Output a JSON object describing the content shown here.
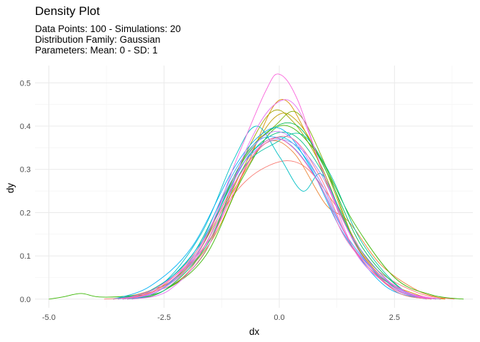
{
  "chart_data": {
    "type": "line",
    "title": "Density Plot",
    "subtitle_lines": [
      "Data Points: 100 - Simulations: 20",
      "Distribution Family: Gaussian",
      "Parameters: Mean: 0 - SD: 1"
    ],
    "xlabel": "dx",
    "ylabel": "dy",
    "xlim": [
      -5.3,
      4.2
    ],
    "ylim": [
      -0.02,
      0.54
    ],
    "x_ticks": [
      -5.0,
      -2.5,
      0.0,
      2.5
    ],
    "x_tick_labels": [
      "-5.0",
      "-2.5",
      "0.0",
      "2.5"
    ],
    "y_ticks": [
      0.0,
      0.1,
      0.2,
      0.3,
      0.4,
      0.5
    ],
    "y_tick_labels": [
      "0.0",
      "0.1",
      "0.2",
      "0.3",
      "0.4",
      "0.5"
    ],
    "grid": true,
    "legend": "none",
    "series": [
      {
        "color": "#F8766D",
        "x": [
          -3.8,
          -3.0,
          -2.0,
          -1.0,
          -0.2,
          0.5,
          1.2,
          2.0,
          3.0,
          3.8
        ],
        "y": [
          0.0,
          0.01,
          0.06,
          0.24,
          0.31,
          0.31,
          0.22,
          0.08,
          0.015,
          0.0
        ]
      },
      {
        "color": "#EA8331",
        "x": [
          -3.6,
          -2.8,
          -2.0,
          -1.0,
          -0.3,
          0.3,
          1.0,
          1.5,
          2.2,
          3.0,
          3.6
        ],
        "y": [
          0.0,
          0.02,
          0.07,
          0.25,
          0.36,
          0.34,
          0.22,
          0.18,
          0.08,
          0.02,
          0.0
        ]
      },
      {
        "color": "#D89000",
        "x": [
          -3.2,
          -2.5,
          -1.5,
          -0.7,
          0.0,
          0.6,
          1.3,
          2.1,
          3.0,
          3.6
        ],
        "y": [
          0.0,
          0.02,
          0.13,
          0.31,
          0.46,
          0.38,
          0.2,
          0.06,
          0.01,
          0.0
        ]
      },
      {
        "color": "#C09B00",
        "x": [
          -3.4,
          -2.6,
          -1.6,
          -0.8,
          -0.1,
          0.4,
          1.0,
          1.7,
          2.6,
          3.4
        ],
        "y": [
          0.0,
          0.02,
          0.12,
          0.3,
          0.42,
          0.41,
          0.3,
          0.12,
          0.02,
          0.0
        ]
      },
      {
        "color": "#A3A500",
        "x": [
          -3.5,
          -2.7,
          -1.8,
          -0.9,
          -0.2,
          0.3,
          0.9,
          1.6,
          2.5,
          3.3
        ],
        "y": [
          0.0,
          0.02,
          0.1,
          0.3,
          0.43,
          0.41,
          0.31,
          0.14,
          0.03,
          0.0
        ]
      },
      {
        "color": "#7CAE00",
        "x": [
          -3.3,
          -2.5,
          -1.6,
          -0.8,
          -0.1,
          0.4,
          1.0,
          1.7,
          2.5,
          3.3
        ],
        "y": [
          0.0,
          0.02,
          0.11,
          0.32,
          0.4,
          0.43,
          0.31,
          0.12,
          0.02,
          0.0
        ]
      },
      {
        "color": "#39B600",
        "x": [
          -5.0,
          -4.7,
          -4.3,
          -3.9,
          -3.2,
          -2.5,
          -1.6,
          -0.8,
          0.0,
          0.8,
          1.6,
          2.5,
          3.3,
          4.0
        ],
        "y": [
          0.0,
          0.005,
          0.013,
          0.005,
          0.008,
          0.02,
          0.1,
          0.28,
          0.4,
          0.34,
          0.18,
          0.05,
          0.01,
          0.0
        ]
      },
      {
        "color": "#00BB4E",
        "x": [
          -3.4,
          -2.6,
          -1.7,
          -0.9,
          -0.2,
          0.4,
          1.0,
          1.8,
          2.7,
          3.5
        ],
        "y": [
          0.0,
          0.02,
          0.12,
          0.3,
          0.39,
          0.4,
          0.3,
          0.12,
          0.02,
          0.0
        ]
      },
      {
        "color": "#00BF7D",
        "x": [
          -3.6,
          -2.8,
          -1.9,
          -1.0,
          -0.3,
          0.3,
          0.9,
          1.6,
          2.5,
          3.3
        ],
        "y": [
          0.0,
          0.02,
          0.1,
          0.28,
          0.37,
          0.38,
          0.3,
          0.14,
          0.03,
          0.0
        ]
      },
      {
        "color": "#00C1A3",
        "x": [
          -3.3,
          -2.5,
          -1.6,
          -0.8,
          -0.1,
          0.5,
          1.1,
          1.8,
          2.7,
          3.5
        ],
        "y": [
          0.0,
          0.02,
          0.12,
          0.3,
          0.36,
          0.38,
          0.29,
          0.13,
          0.02,
          0.0
        ]
      },
      {
        "color": "#00BFC4",
        "x": [
          -3.6,
          -2.6,
          -1.7,
          -1.0,
          -0.5,
          0.0,
          0.5,
          0.9,
          1.3,
          1.8,
          2.6,
          3.4
        ],
        "y": [
          0.0,
          0.03,
          0.15,
          0.32,
          0.4,
          0.33,
          0.25,
          0.29,
          0.21,
          0.1,
          0.02,
          0.0
        ]
      },
      {
        "color": "#00BAE0",
        "x": [
          -3.5,
          -2.6,
          -1.7,
          -0.8,
          -0.2,
          0.3,
          0.9,
          1.6,
          2.5,
          3.3
        ],
        "y": [
          0.0,
          0.03,
          0.13,
          0.31,
          0.37,
          0.36,
          0.27,
          0.12,
          0.03,
          0.0
        ]
      },
      {
        "color": "#00B0F6",
        "x": [
          -3.6,
          -2.8,
          -1.9,
          -1.0,
          -0.4,
          0.1,
          0.7,
          1.4,
          2.3,
          3.2
        ],
        "y": [
          0.0,
          0.03,
          0.12,
          0.3,
          0.38,
          0.39,
          0.3,
          0.15,
          0.03,
          0.0
        ]
      },
      {
        "color": "#35A2FF",
        "x": [
          -3.4,
          -2.6,
          -1.8,
          -1.0,
          -0.4,
          0.2,
          0.8,
          1.5,
          2.4,
          3.2
        ],
        "y": [
          0.0,
          0.02,
          0.11,
          0.29,
          0.37,
          0.36,
          0.28,
          0.14,
          0.03,
          0.0
        ]
      },
      {
        "color": "#9590FF",
        "x": [
          -3.5,
          -2.6,
          -1.8,
          -1.0,
          -0.3,
          0.3,
          0.9,
          1.6,
          2.5,
          3.3
        ],
        "y": [
          0.0,
          0.02,
          0.1,
          0.28,
          0.36,
          0.36,
          0.29,
          0.14,
          0.03,
          0.0
        ]
      },
      {
        "color": "#C77CFF",
        "x": [
          -3.4,
          -2.6,
          -1.7,
          -0.9,
          -0.3,
          0.3,
          0.9,
          1.6,
          2.5,
          3.3
        ],
        "y": [
          0.0,
          0.02,
          0.11,
          0.29,
          0.38,
          0.37,
          0.27,
          0.12,
          0.03,
          0.0
        ]
      },
      {
        "color": "#E76BF3",
        "x": [
          -3.2,
          -2.4,
          -1.5,
          -0.7,
          -0.1,
          0.4,
          1.0,
          1.7,
          2.6,
          3.4
        ],
        "y": [
          0.0,
          0.02,
          0.13,
          0.35,
          0.45,
          0.44,
          0.28,
          0.1,
          0.02,
          0.0
        ]
      },
      {
        "color": "#FA62DB",
        "x": [
          -3.4,
          -2.6,
          -1.7,
          -0.9,
          -0.3,
          0.0,
          0.4,
          1.0,
          1.8,
          2.7,
          3.5
        ],
        "y": [
          0.0,
          0.03,
          0.12,
          0.33,
          0.48,
          0.52,
          0.46,
          0.28,
          0.1,
          0.02,
          0.0
        ]
      },
      {
        "color": "#FF62BC",
        "x": [
          -3.3,
          -2.5,
          -1.5,
          -0.7,
          -0.2,
          0.3,
          0.9,
          1.5,
          2.4,
          3.2
        ],
        "y": [
          0.0,
          0.03,
          0.14,
          0.31,
          0.37,
          0.35,
          0.26,
          0.13,
          0.03,
          0.0
        ]
      },
      {
        "color": "#FF6C91",
        "x": [
          -3.6,
          -2.7,
          -1.8,
          -0.9,
          -0.3,
          0.3,
          0.9,
          1.6,
          2.5,
          3.3
        ],
        "y": [
          0.0,
          0.02,
          0.11,
          0.28,
          0.36,
          0.37,
          0.28,
          0.12,
          0.02,
          0.0
        ]
      }
    ]
  }
}
